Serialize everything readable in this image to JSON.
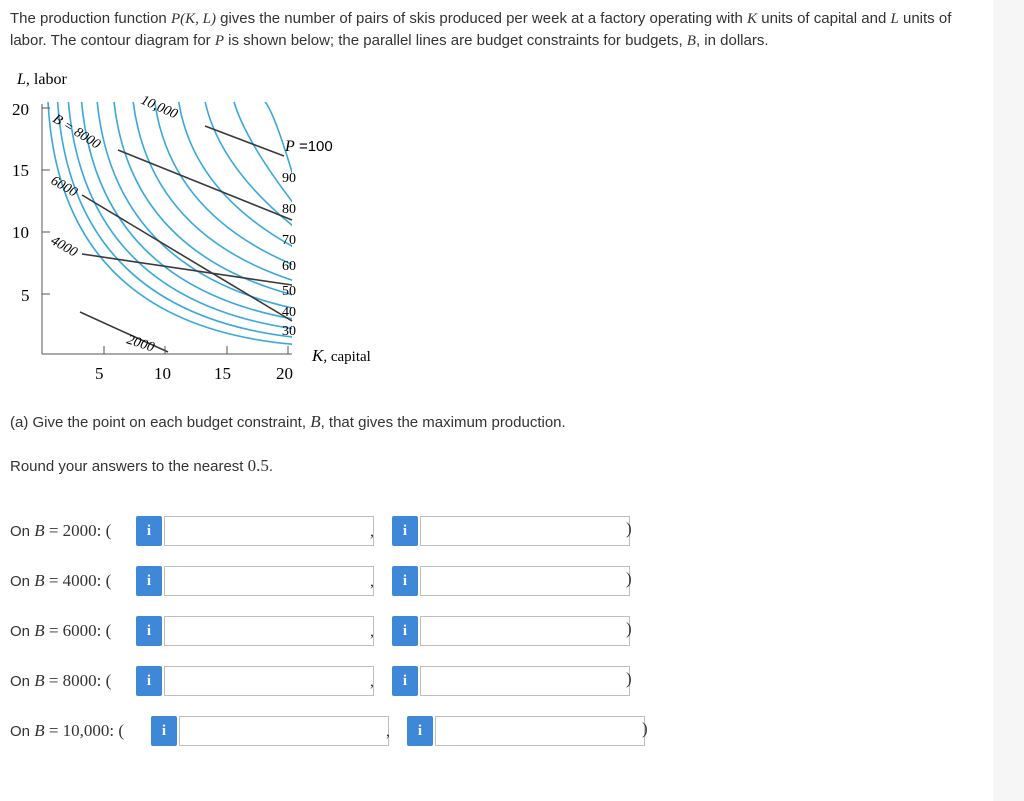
{
  "intro": {
    "t1": "The production function ",
    "m1": "P(K, L)",
    "t2": " gives the number of pairs of skis produced per week at a factory operating with ",
    "m2": "K",
    "t3": " units of capital and ",
    "m3": "L",
    "t4": " units of labor. The contour diagram for ",
    "m4": "P",
    "t5": " is shown below; the parallel lines are budget constraints for budgets, ",
    "m5": "B",
    "t6": ", in dollars."
  },
  "figure": {
    "y_axis_label_var": "L",
    "y_axis_label_text": ", labor",
    "x_axis_label_var": "K",
    "x_axis_label_text": ", capital",
    "y_ticks": [
      "20",
      "15",
      "10",
      "5"
    ],
    "x_ticks": [
      "5",
      "10",
      "15",
      "20"
    ],
    "p_label_var": "P",
    "p_label_eq": " =100",
    "contour_labels": [
      "90",
      "80",
      "70",
      "60",
      "50",
      "40",
      "30"
    ],
    "budget_labels": [
      "B = 8000",
      "6000",
      "4000",
      "2000",
      "10,000"
    ],
    "colors": {
      "contour": "#3aa8dc",
      "budget": "#3a3a3a",
      "axis": "#555555"
    }
  },
  "part_a": {
    "prefix": "(a) Give the point on each budget constraint, ",
    "var": "B",
    "suffix": ", that gives the maximum production."
  },
  "round": {
    "prefix": "Round your answers to the nearest ",
    "value": "0.5",
    "suffix": "."
  },
  "rows": [
    {
      "label_prefix": "On ",
      "var": "B",
      "eq": " = 2000: (",
      "k_value": "",
      "l_value": "",
      "comma": ",",
      "close": ")"
    },
    {
      "label_prefix": "On ",
      "var": "B",
      "eq": " = 4000: (",
      "k_value": "",
      "l_value": "",
      "comma": ",",
      "close": ")"
    },
    {
      "label_prefix": "On ",
      "var": "B",
      "eq": " = 6000: (",
      "k_value": "",
      "l_value": "",
      "comma": ",",
      "close": ")"
    },
    {
      "label_prefix": "On ",
      "var": "B",
      "eq": " = 8000: (",
      "k_value": "",
      "l_value": "",
      "comma": ",",
      "close": ")"
    },
    {
      "label_prefix": "On ",
      "var": "B",
      "eq": " = 10,000: (",
      "k_value": "",
      "l_value": "",
      "comma": ",",
      "close": ")"
    }
  ],
  "info_icon_glyph": "i",
  "info_icon": "info-icon"
}
